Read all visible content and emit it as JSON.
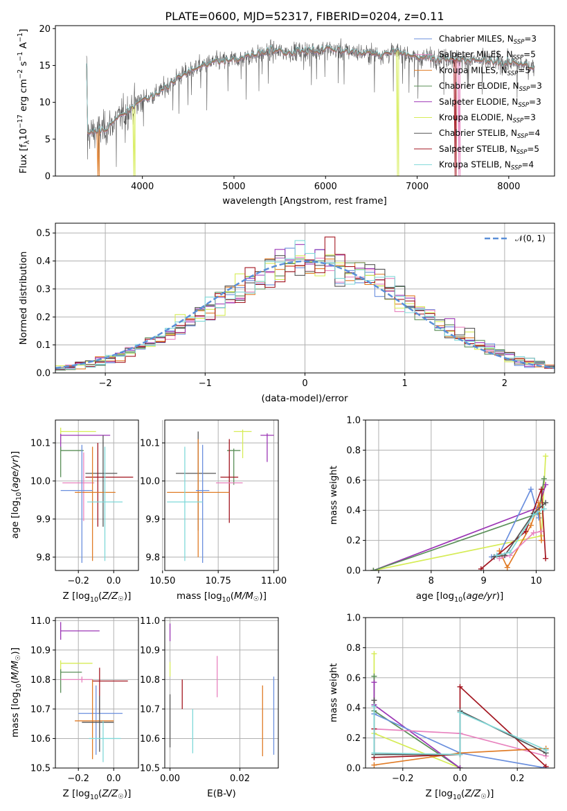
{
  "colors": {
    "Chabrier MILES": "#6a8fde",
    "Salpeter MILES": "#e883bf",
    "Kroupa MILES": "#e07b25",
    "Chabrier ELODIE": "#5a8f58",
    "Salpeter ELODIE": "#9b35b5",
    "Kroupa ELODIE": "#d6ec56",
    "Chabrier STELIB": "#555555",
    "Salpeter STELIB": "#a31620",
    "Kroupa STELIB": "#7fd8d8",
    "normal": "#5a8fd8"
  },
  "chart_data": [
    {
      "id": "spectrum",
      "type": "line",
      "title": "PLATE=0600, MJD=52317, FIBERID=0204, z=0.11",
      "xlabel": "wavelength [Angstrom, rest frame]",
      "ylabel": "Flux [f_λ10^-17 erg cm^-2 s^-1 A^-1]",
      "xlim": [
        3050,
        8500
      ],
      "ylim": [
        0,
        20.4
      ],
      "xticks": [
        "4000",
        "5000",
        "6000",
        "7000",
        "8000"
      ],
      "yticks": [
        "0",
        "5",
        "10",
        "15",
        "20"
      ],
      "grid": false,
      "legend_position": "right",
      "legend": [
        {
          "text": "Chabrier MILES, N",
          "sub": "SSP",
          "tail": "=3"
        },
        {
          "text": "Salpeter MILES, N",
          "sub": "SSP",
          "tail": "=5"
        },
        {
          "text": "Kroupa MILES, N",
          "sub": "SSP",
          "tail": "=5"
        },
        {
          "text": "Chabrier ELODIE, N",
          "sub": "SSP",
          "tail": "=3"
        },
        {
          "text": "Salpeter ELODIE, N",
          "sub": "SSP",
          "tail": "=3"
        },
        {
          "text": "Kroupa ELODIE, N",
          "sub": "SSP",
          "tail": "=3"
        },
        {
          "text": "Chabrier STELIB, N",
          "sub": "SSP",
          "tail": "=4"
        },
        {
          "text": "Salpeter STELIB, N",
          "sub": "SSP",
          "tail": "=5"
        },
        {
          "text": "Kroupa STELIB, N",
          "sub": "SSP",
          "tail": "=4"
        }
      ],
      "continuum": {
        "x": [
          3400,
          3600,
          3800,
          4000,
          4200,
          4400,
          4600,
          4800,
          5000,
          5200,
          5400,
          5600,
          5800,
          6000,
          6200,
          6400,
          6600,
          6800,
          7000,
          7200,
          7400,
          7600,
          7800,
          8000,
          8200,
          8280
        ],
        "y": [
          5.8,
          6.4,
          8.5,
          10.3,
          11.5,
          13.5,
          14.8,
          15.5,
          15.8,
          16.3,
          16.9,
          16.8,
          17.0,
          17.2,
          17.0,
          16.7,
          16.5,
          16.8,
          16.0,
          16.1,
          15.9,
          15.7,
          15.5,
          15.3,
          15.0,
          14.8
        ]
      },
      "data_range": [
        3390,
        8280
      ],
      "model_dropouts": [
        {
          "model": "Kroupa MILES",
          "x": 3520
        },
        {
          "model": "Kroupa ELODIE",
          "x": 3920
        },
        {
          "model": "Kroupa ELODIE",
          "x": 6790
        },
        {
          "model": "Salpeter STELIB",
          "x": 7420
        },
        {
          "model": "Salpeter MILES",
          "x": 7460
        }
      ]
    },
    {
      "id": "residuals",
      "type": "histogram",
      "xlabel": "(data-model)/error",
      "ylabel": "Normed distribution",
      "xlim": [
        -2.5,
        2.5
      ],
      "ylim": [
        0,
        0.535
      ],
      "xticks": [
        "−2",
        "−1",
        "0",
        "1",
        "2"
      ],
      "yticks": [
        "0.0",
        "0.1",
        "0.2",
        "0.3",
        "0.4",
        "0.5"
      ],
      "grid": true,
      "legend": "𝒩(0, 1)",
      "legend_position": "top-right",
      "bin_range": [
        -2.5,
        2.5
      ],
      "bin_width": 0.1
    },
    {
      "id": "age-vs-z",
      "type": "errorbar",
      "xlabel": "Z [log10(Z/Z☉)]",
      "ylabel": "age  [log10(age/yr)]",
      "xlim": [
        -0.33,
        0.14
      ],
      "ylim": [
        9.765,
        10.16
      ],
      "xticks": [
        "−0.2",
        "0.0"
      ],
      "xtickvals": [
        -0.2,
        0.0
      ],
      "yticks": [
        "9.8",
        "9.9",
        "10.0",
        "10.1"
      ],
      "ytickvals": [
        9.8,
        9.9,
        10.0,
        10.1
      ],
      "grid": true,
      "points": [
        {
          "model": "Kroupa ELODIE",
          "x": -0.3,
          "xerr": [
            0,
            0.2
          ],
          "y": 10.13,
          "yerr": [
            0.03,
            0.01
          ]
        },
        {
          "model": "Salpeter ELODIE",
          "x": -0.3,
          "xerr": [
            0,
            0.28
          ],
          "y": 10.12,
          "yerr": [
            0.04,
            0.004
          ]
        },
        {
          "model": "Chabrier ELODIE",
          "x": -0.3,
          "xerr": [
            0,
            0.13
          ],
          "y": 10.08,
          "yerr": [
            0.07,
            0.01
          ]
        },
        {
          "model": "Chabrier STELIB",
          "x": -0.06,
          "xerr": [
            0.1,
            0.08
          ],
          "y": 10.02,
          "yerr": [
            0.14,
            0.1
          ]
        },
        {
          "model": "Salpeter STELIB",
          "x": -0.09,
          "xerr": [
            0.07,
            0.2
          ],
          "y": 10.01,
          "yerr": [
            0.13,
            0.09
          ]
        },
        {
          "model": "Salpeter MILES",
          "x": -0.17,
          "xerr": [
            0.12,
            0.06
          ],
          "y": 9.995,
          "yerr": [
            0.1,
            0.08
          ]
        },
        {
          "model": "Kroupa MILES",
          "x": -0.12,
          "xerr": [
            0.1,
            0.13
          ],
          "y": 9.97,
          "yerr": [
            0.18,
            0.12
          ]
        },
        {
          "model": "Chabrier MILES",
          "x": -0.18,
          "xerr": [
            0.12,
            0.06
          ],
          "y": 9.975,
          "yerr": [
            0.19,
            0.12
          ]
        },
        {
          "model": "Kroupa STELIB",
          "x": -0.05,
          "xerr": [
            0.1,
            0.1
          ],
          "y": 9.945,
          "yerr": [
            0.155,
            0.145
          ]
        }
      ]
    },
    {
      "id": "age-vs-mass",
      "type": "errorbar",
      "xlabel": "mass [log10(M/M☉)]",
      "ylabel": "",
      "xlim": [
        10.51,
        11.02
      ],
      "ylim": [
        9.765,
        10.16
      ],
      "xticks": [
        "10.50",
        "10.75",
        "11.00"
      ],
      "xtickvals": [
        10.5,
        10.75,
        11.0
      ],
      "yticks": [
        "9.8",
        "9.9",
        "10.0",
        "10.1"
      ],
      "ytickvals": [
        9.8,
        9.9,
        10.0,
        10.1
      ],
      "grid": true,
      "points": [
        {
          "model": "Salpeter ELODIE",
          "x": 10.97,
          "xerr": [
            0.03,
            0.03
          ],
          "y": 10.12,
          "yerr": [
            0.07,
            0.005
          ]
        },
        {
          "model": "Kroupa ELODIE",
          "x": 10.86,
          "xerr": [
            0.04,
            0.04
          ],
          "y": 10.13,
          "yerr": [
            0.07,
            0.005
          ]
        },
        {
          "model": "Chabrier ELODIE",
          "x": 10.82,
          "xerr": [
            0.03,
            0.03
          ],
          "y": 10.08,
          "yerr": [
            0.09,
            0.005
          ]
        },
        {
          "model": "Salpeter STELIB",
          "x": 10.8,
          "xerr": [
            0.04,
            0.04
          ],
          "y": 10.01,
          "yerr": [
            0.12,
            0.1
          ]
        },
        {
          "model": "Salpeter MILES",
          "x": 10.8,
          "xerr": [
            0.06,
            0.06
          ],
          "y": 9.995,
          "yerr": [
            0,
            0
          ]
        },
        {
          "model": "Chabrier STELIB",
          "x": 10.66,
          "xerr": [
            0.1,
            0.08
          ],
          "y": 10.02,
          "yerr": [
            0.15,
            0.11
          ]
        },
        {
          "model": "Kroupa MILES",
          "x": 10.66,
          "xerr": [
            0.14,
            0.14
          ],
          "y": 9.97,
          "yerr": [
            0.17,
            0.14
          ]
        },
        {
          "model": "Chabrier MILES",
          "x": 10.68,
          "xerr": [
            0.03,
            0.03
          ],
          "y": 9.975,
          "yerr": [
            0.19,
            0.12
          ]
        },
        {
          "model": "Kroupa STELIB",
          "x": 10.6,
          "xerr": [
            0.08,
            0.08
          ],
          "y": 9.945,
          "yerr": [
            0.155,
            0.145
          ]
        }
      ]
    },
    {
      "id": "weight-vs-age",
      "type": "line",
      "xlabel": "age  [log10(age/yr)]",
      "ylabel": "mass weight",
      "xlim": [
        6.75,
        10.35
      ],
      "ylim": [
        0,
        1.0
      ],
      "xticks": [
        "7",
        "8",
        "9",
        "10"
      ],
      "xtickvals": [
        7,
        8,
        9,
        10
      ],
      "yticks": [
        "0.0",
        "0.2",
        "0.4",
        "0.6",
        "0.8",
        "1.0"
      ],
      "ytickvals": [
        0,
        0.2,
        0.4,
        0.6,
        0.8,
        1.0
      ],
      "grid": true,
      "series": [
        {
          "model": "Kroupa ELODIE",
          "x": [
            6.9,
            10.1,
            10.18
          ],
          "y": [
            0.0,
            0.23,
            0.76
          ]
        },
        {
          "model": "Salpeter ELODIE",
          "x": [
            6.9,
            10.05,
            10.18
          ],
          "y": [
            0.0,
            0.42,
            0.57
          ]
        },
        {
          "model": "Chabrier ELODIE",
          "x": [
            6.9,
            10.05,
            10.15
          ],
          "y": [
            0.0,
            0.38,
            0.61
          ]
        },
        {
          "model": "Chabrier MILES",
          "x": [
            9.15,
            9.3,
            9.9,
            10.05
          ],
          "y": [
            0.09,
            0.11,
            0.54,
            0.35
          ]
        },
        {
          "model": "Kroupa MILES",
          "x": [
            9.3,
            9.45,
            9.9,
            10.05,
            10.1
          ],
          "y": [
            0.13,
            0.02,
            0.3,
            0.45,
            0.2
          ]
        },
        {
          "model": "Salpeter MILES",
          "x": [
            9.3,
            9.5,
            9.95,
            10.1
          ],
          "y": [
            0.08,
            0.1,
            0.25,
            0.26
          ]
        },
        {
          "model": "Salpeter STELIB",
          "x": [
            8.95,
            9.8,
            10.1,
            10.18
          ],
          "y": [
            0.01,
            0.26,
            0.54,
            0.08
          ]
        },
        {
          "model": "Chabrier STELIB",
          "x": [
            9.2,
            9.4,
            9.95,
            10.18
          ],
          "y": [
            0.09,
            0.1,
            0.38,
            0.45
          ]
        },
        {
          "model": "Kroupa STELIB",
          "x": [
            9.25,
            9.5,
            9.95,
            10.15
          ],
          "y": [
            0.1,
            0.12,
            0.37,
            0.41
          ]
        }
      ]
    },
    {
      "id": "mass-vs-z",
      "type": "errorbar",
      "xlabel": "Z [log10(Z/Z☉)]",
      "ylabel": "mass [log10(M/M☉)]",
      "xlim": [
        -0.33,
        0.14
      ],
      "ylim": [
        10.5,
        11.01
      ],
      "xticks": [
        "−0.2",
        "0.0"
      ],
      "xtickvals": [
        -0.2,
        0.0
      ],
      "yticks": [
        "10.5",
        "10.6",
        "10.7",
        "10.8",
        "10.9",
        "11.0"
      ],
      "ytickvals": [
        10.5,
        10.6,
        10.7,
        10.8,
        10.9,
        11.0
      ],
      "grid": true,
      "points": [
        {
          "model": "Salpeter ELODIE",
          "x": -0.3,
          "xerr": [
            0,
            0.22
          ],
          "y": 10.965,
          "yerr": [
            0.03,
            0.03
          ]
        },
        {
          "model": "Kroupa ELODIE",
          "x": -0.3,
          "xerr": [
            0,
            0.18
          ],
          "y": 10.855,
          "yerr": [
            0.04,
            0.01
          ]
        },
        {
          "model": "Chabrier ELODIE",
          "x": -0.3,
          "xerr": [
            0,
            0.12
          ],
          "y": 10.825,
          "yerr": [
            0.07,
            0.01
          ]
        },
        {
          "model": "Salpeter MILES",
          "x": -0.18,
          "xerr": [
            0.12,
            0.06
          ],
          "y": 10.8,
          "yerr": [
            0.01,
            0.01
          ]
        },
        {
          "model": "Salpeter STELIB",
          "x": -0.08,
          "xerr": [
            0.04,
            0.16
          ],
          "y": 10.795,
          "yerr": [
            0.11,
            0.045
          ]
        },
        {
          "model": "Chabrier MILES",
          "x": -0.1,
          "xerr": [
            0.1,
            0.15
          ],
          "y": 10.685,
          "yerr": [
            0.14,
            0.095
          ]
        },
        {
          "model": "Kroupa MILES",
          "x": -0.12,
          "xerr": [
            0.1,
            0.12
          ],
          "y": 10.66,
          "yerr": [
            0.13,
            0.14
          ]
        },
        {
          "model": "Chabrier STELIB",
          "x": -0.08,
          "xerr": [
            0.1,
            0.08
          ],
          "y": 10.655,
          "yerr": [
            0.1,
            0.09
          ]
        },
        {
          "model": "Kroupa STELIB",
          "x": -0.06,
          "xerr": [
            0.08,
            0.1
          ],
          "y": 10.6,
          "yerr": [
            0.08,
            0.06
          ]
        }
      ]
    },
    {
      "id": "mass-vs-ebv",
      "type": "errorbar",
      "xlabel": "E(B-V)",
      "ylabel": "",
      "xlim": [
        -0.0015,
        0.031
      ],
      "ylim": [
        10.5,
        11.01
      ],
      "xticks": [
        "0.00",
        "0.02"
      ],
      "xtickvals": [
        0.0,
        0.02
      ],
      "yticks": [
        "10.5",
        "10.6",
        "10.7",
        "10.8",
        "10.9",
        "11.0"
      ],
      "ytickvals": [
        10.5,
        10.6,
        10.7,
        10.8,
        10.9,
        11.0
      ],
      "grid": true,
      "points": [
        {
          "model": "Salpeter ELODIE",
          "x": 0.0,
          "y": 10.96,
          "yerr": [
            0.03,
            0.03
          ]
        },
        {
          "model": "Kroupa ELODIE",
          "x": 0.0,
          "y": 10.85,
          "yerr": [
            0.04,
            0.01
          ]
        },
        {
          "model": "Chabrier STELIB",
          "x": 0.0,
          "y": 10.66,
          "yerr": [
            0.09,
            0.09
          ]
        },
        {
          "model": "Salpeter STELIB",
          "x": 0.0035,
          "y": 10.75,
          "yerr": [
            0.05,
            0.05
          ]
        },
        {
          "model": "Kroupa STELIB",
          "x": 0.0065,
          "y": 10.62,
          "yerr": [
            0.07,
            0.08
          ]
        },
        {
          "model": "Salpeter MILES",
          "x": 0.0135,
          "y": 10.81,
          "yerr": [
            0.07,
            0.07
          ]
        },
        {
          "model": "Kroupa MILES",
          "x": 0.0265,
          "y": 10.66,
          "yerr": [
            0.12,
            0.12
          ]
        },
        {
          "model": "Chabrier MILES",
          "x": 0.0297,
          "y": 10.675,
          "yerr": [
            0.13,
            0.135
          ]
        }
      ]
    },
    {
      "id": "weight-vs-z",
      "type": "line",
      "xlabel": "Z [log10(Z/Z☉)]",
      "ylabel": "mass weight",
      "xlim": [
        -0.33,
        0.33
      ],
      "ylim": [
        0,
        1.0
      ],
      "xticks": [
        "−0.2",
        "0.0",
        "0.2"
      ],
      "xtickvals": [
        -0.2,
        0.0,
        0.2
      ],
      "yticks": [
        "0.0",
        "0.2",
        "0.4",
        "0.6",
        "0.8",
        "1.0"
      ],
      "ytickvals": [
        0,
        0.2,
        0.4,
        0.6,
        0.8,
        1.0
      ],
      "grid": true,
      "series": [
        {
          "model": "Kroupa ELODIE",
          "x": [
            -0.3,
            -0.3,
            0.0
          ],
          "y": [
            0.76,
            0.23,
            0.0
          ]
        },
        {
          "model": "Chabrier ELODIE",
          "x": [
            -0.3,
            -0.3,
            0.0
          ],
          "y": [
            0.61,
            0.38,
            0.0
          ]
        },
        {
          "model": "Salpeter ELODIE",
          "x": [
            -0.3,
            -0.3,
            0.0
          ],
          "y": [
            0.57,
            0.42,
            0.0
          ]
        },
        {
          "model": "Chabrier MILES",
          "x": [
            -0.3,
            0.0,
            0.3
          ],
          "y": [
            0.36,
            0.1,
            0.0
          ]
        },
        {
          "model": "Salpeter MILES",
          "x": [
            -0.3,
            0.0,
            0.3
          ],
          "y": [
            0.26,
            0.23,
            0.08
          ]
        },
        {
          "model": "Kroupa MILES",
          "x": [
            -0.3,
            0.0,
            0.3
          ],
          "y": [
            0.02,
            0.1,
            0.13
          ]
        },
        {
          "model": "Salpeter STELIB",
          "x": [
            -0.3,
            -0.3,
            0.0,
            0.0,
            0.3
          ],
          "y": [
            0.26,
            0.07,
            0.09,
            0.54,
            0.01
          ]
        },
        {
          "model": "Chabrier STELIB",
          "x": [
            -0.3,
            -0.3,
            0.0,
            0.0,
            0.3
          ],
          "y": [
            0.45,
            0.09,
            0.09,
            0.38,
            0.1
          ]
        },
        {
          "model": "Kroupa STELIB",
          "x": [
            -0.3,
            -0.3,
            0.0,
            0.0,
            0.3
          ],
          "y": [
            0.41,
            0.1,
            0.09,
            0.37,
            0.12
          ]
        }
      ]
    }
  ]
}
